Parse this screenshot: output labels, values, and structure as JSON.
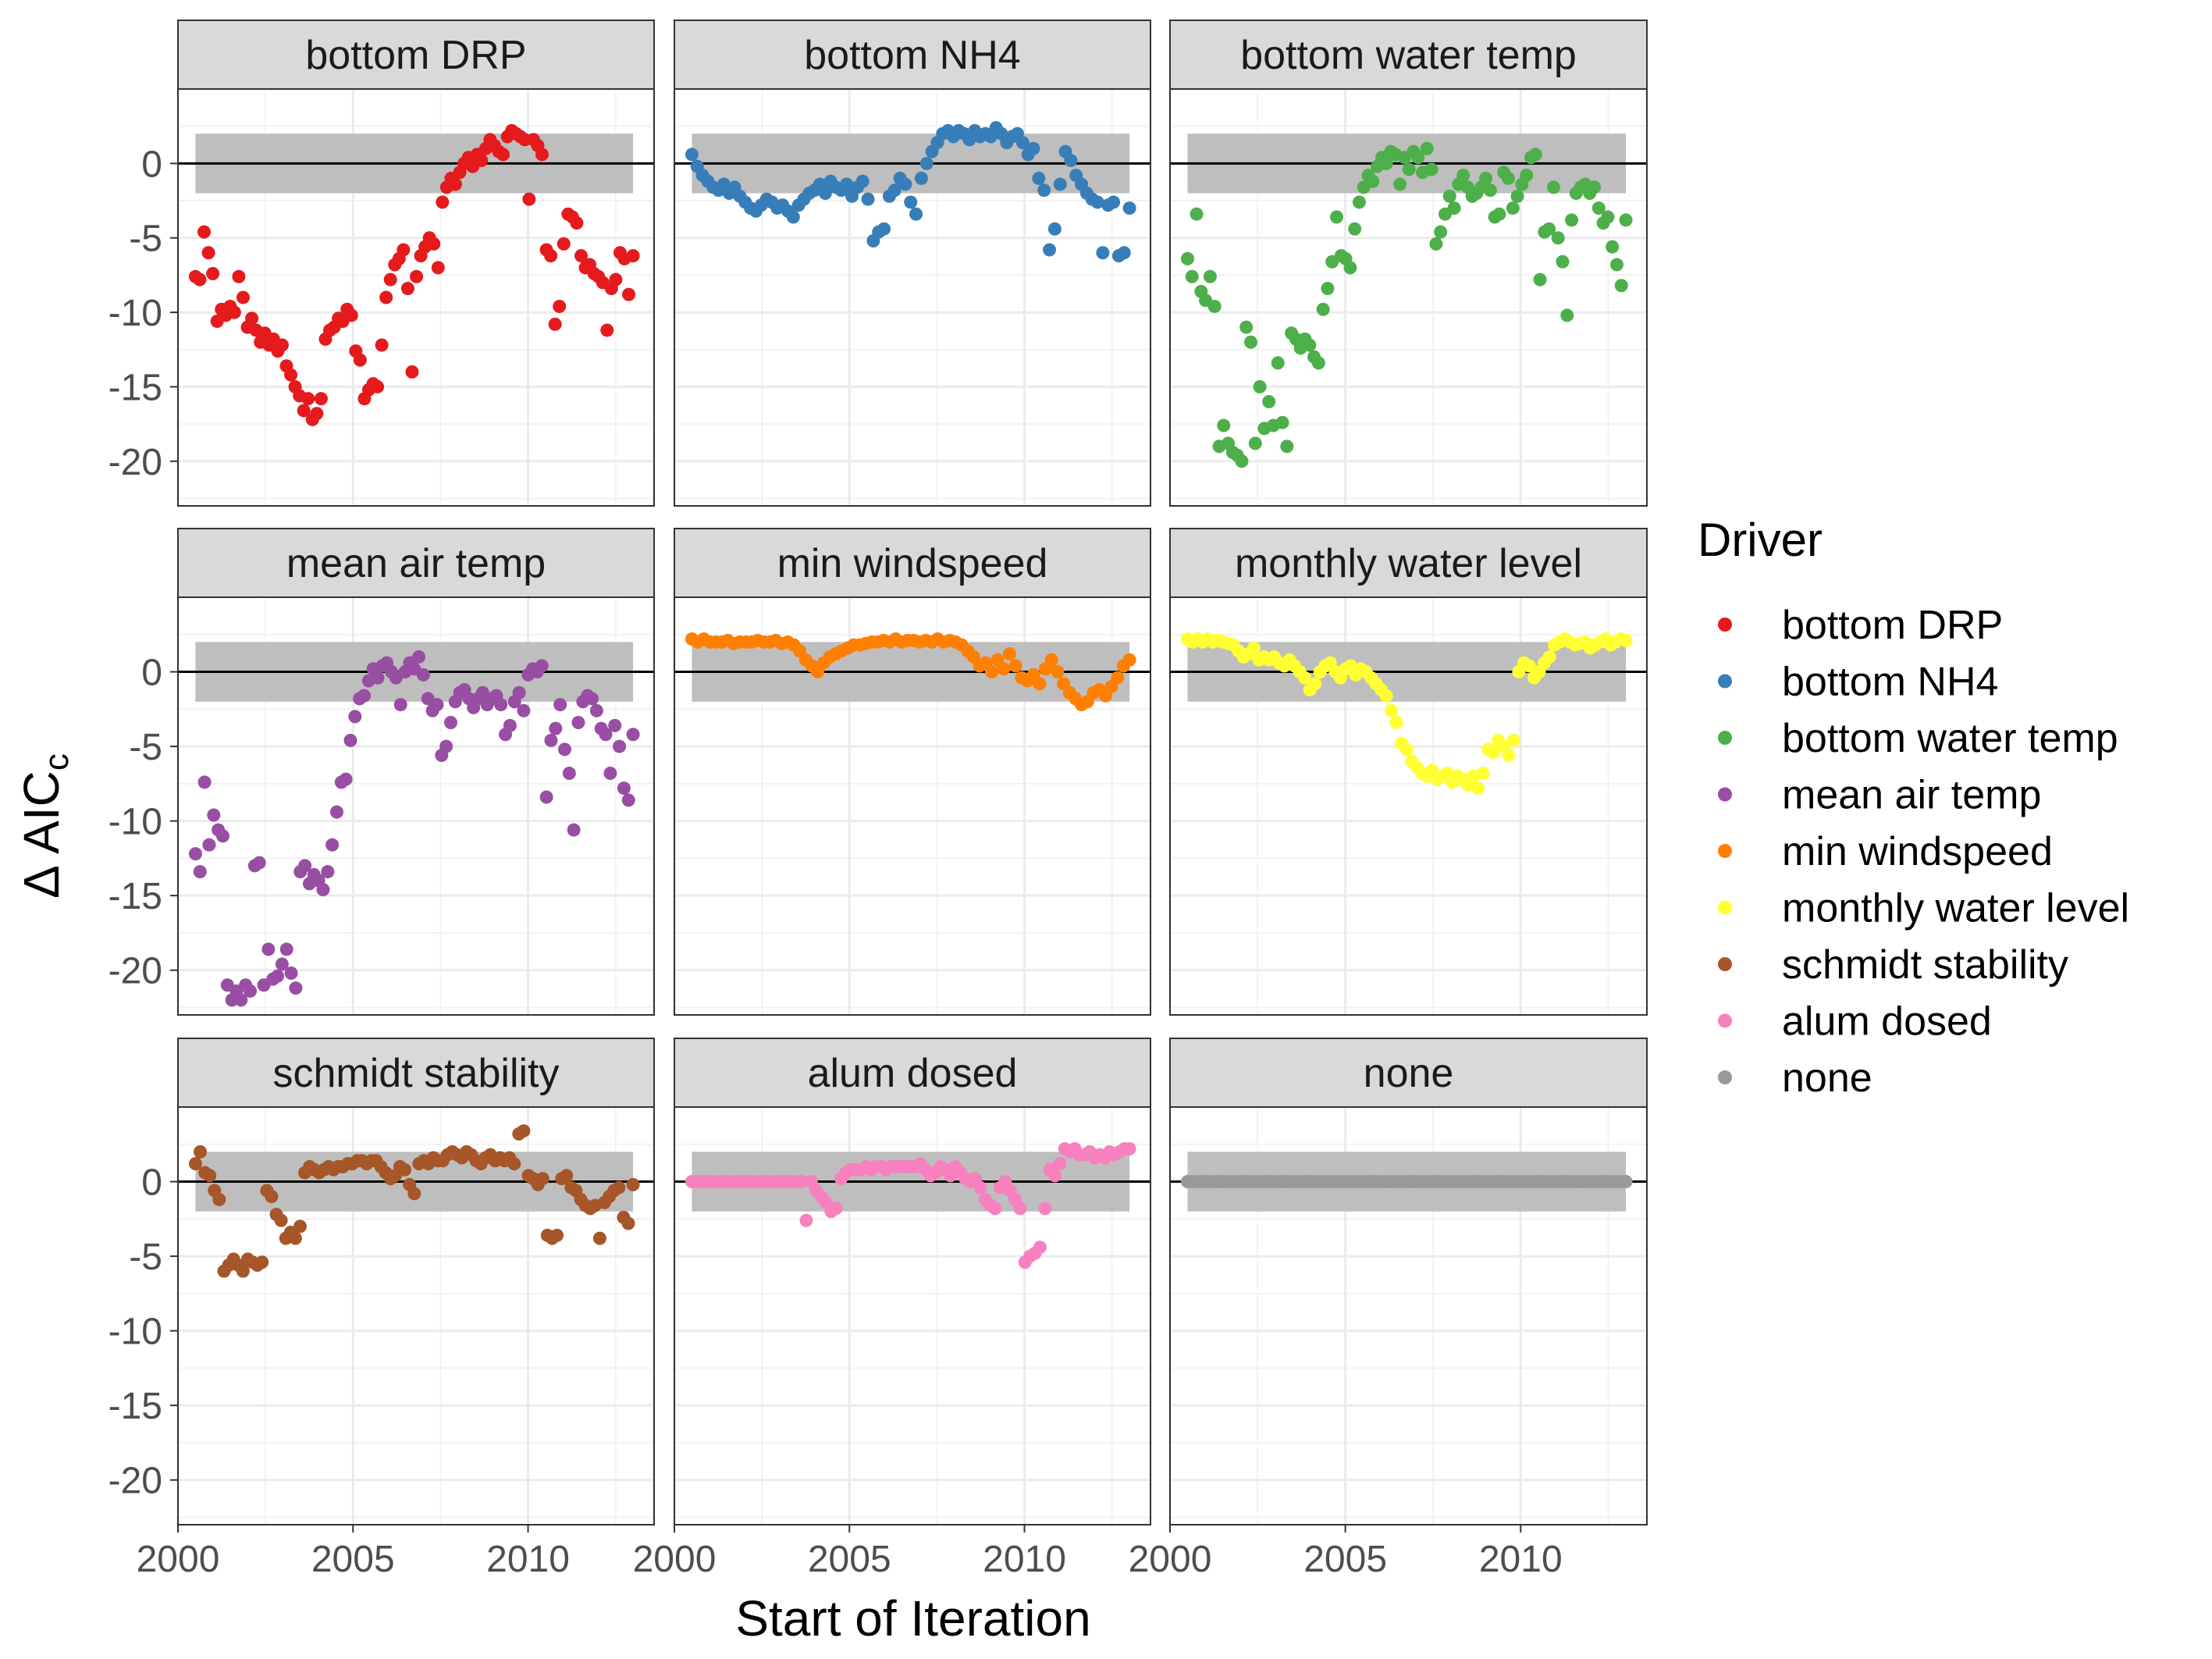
{
  "figure": {
    "xlabel": "Start of Iteration",
    "ylabel_main": "Δ AIC",
    "ylabel_sub": "c"
  },
  "legend": {
    "title": "Driver",
    "placement": "right",
    "items": [
      {
        "label": "bottom DRP",
        "color": "#E41A1C"
      },
      {
        "label": "bottom NH4",
        "color": "#377EB8"
      },
      {
        "label": "bottom water temp",
        "color": "#4DAF4A"
      },
      {
        "label": "mean air temp",
        "color": "#984EA3"
      },
      {
        "label": "min windspeed",
        "color": "#FF7F00"
      },
      {
        "label": "monthly water level",
        "color": "#FFFF33"
      },
      {
        "label": "schmidt stability",
        "color": "#A65628"
      },
      {
        "label": "alum dosed",
        "color": "#F781BF"
      },
      {
        "label": "none",
        "color": "#999999"
      }
    ]
  },
  "chart_data": {
    "type": "scatter",
    "layout": "facet-grid-3x3",
    "xlabel": "Start of Iteration",
    "ylabel": "Δ AICc",
    "xlim": [
      2000,
      2013.6
    ],
    "ylim": [
      -23,
      5
    ],
    "x_ticks": [
      2000,
      2005,
      2010
    ],
    "y_ticks": [
      0,
      -5,
      -10,
      -15,
      -20
    ],
    "grid": true,
    "reference_line": 0,
    "reference_band": [
      -2,
      2
    ],
    "panels": [
      {
        "name": "bottom DRP",
        "color": "#E41A1C",
        "x_start": 2000.5,
        "x_end": 2013.0,
        "y": [
          -7.6,
          -7.8,
          -4.6,
          -6.0,
          -7.4,
          -10.6,
          -9.8,
          -10.2,
          -9.6,
          -10.0,
          -7.6,
          -9.0,
          -11.0,
          -10.4,
          -11.2,
          -12.0,
          -11.4,
          -12.2,
          -11.8,
          -12.6,
          -12.2,
          -13.6,
          -14.2,
          -15.0,
          -15.6,
          -16.6,
          -15.8,
          -17.2,
          -16.8,
          -15.8,
          -11.8,
          -11.2,
          -11.0,
          -10.4,
          -10.6,
          -9.8,
          -10.2,
          -12.6,
          -13.2,
          -15.8,
          -15.2,
          -14.8,
          -15.0,
          -12.2,
          -9.0,
          -7.8,
          -6.8,
          -6.4,
          -5.8,
          -8.4,
          -14.0,
          -7.6,
          -6.2,
          -5.6,
          -5.0,
          -5.4,
          -7.0,
          -2.6,
          -1.6,
          -1.0,
          -1.4,
          -0.6,
          0.0,
          0.4,
          -0.2,
          0.6,
          0.2,
          1.0,
          1.6,
          1.2,
          0.8,
          0.6,
          1.8,
          2.2,
          2.0,
          1.8,
          1.6,
          -2.4,
          1.6,
          1.2,
          0.6,
          -5.8,
          -6.2,
          -10.8,
          -9.6,
          -5.4,
          -3.4,
          -3.6,
          -4.0,
          -6.2,
          -7.0,
          -6.8,
          -7.4,
          -7.6,
          -8.0,
          -11.2,
          -8.4,
          -7.8,
          -6.0,
          -6.4,
          -8.8,
          -6.2
        ]
      },
      {
        "name": "bottom NH4",
        "color": "#377EB8",
        "x_start": 2000.5,
        "x_end": 2013.0,
        "y": [
          0.6,
          -0.2,
          -0.8,
          -1.2,
          -1.6,
          -1.8,
          -1.4,
          -2.0,
          -1.6,
          -2.2,
          -2.6,
          -3.0,
          -3.2,
          -2.8,
          -2.4,
          -2.6,
          -3.0,
          -2.8,
          -3.2,
          -3.6,
          -2.8,
          -2.4,
          -2.0,
          -1.8,
          -1.4,
          -2.0,
          -1.2,
          -1.6,
          -1.8,
          -1.4,
          -2.2,
          -1.6,
          -1.2,
          -2.4,
          -5.2,
          -4.6,
          -4.4,
          -2.2,
          -1.8,
          -1.0,
          -1.4,
          -2.6,
          -3.4,
          -1.0,
          0.0,
          0.8,
          1.4,
          2.0,
          2.2,
          1.8,
          2.2,
          2.0,
          1.6,
          2.2,
          1.8,
          2.0,
          1.8,
          2.4,
          2.0,
          1.4,
          1.8,
          2.0,
          1.4,
          0.6,
          1.0,
          -1.0,
          -1.8,
          -5.8,
          -4.4,
          -1.4,
          0.8,
          0.2,
          -0.8,
          -1.4,
          -2.0,
          -2.4,
          -2.6,
          -6.0,
          -2.8,
          -2.6,
          -6.2,
          -6.0,
          -3.0
        ]
      },
      {
        "name": "bottom water temp",
        "color": "#4DAF4A",
        "x_start": 2000.5,
        "x_end": 2013.0,
        "y": [
          -6.4,
          -7.6,
          -3.4,
          -8.6,
          -9.2,
          -7.6,
          -9.6,
          -19.0,
          -17.6,
          -18.8,
          -19.4,
          -19.6,
          -20.0,
          -11.0,
          -12.0,
          -18.8,
          -15.0,
          -17.8,
          -16.0,
          -17.6,
          -13.4,
          -17.4,
          -19.0,
          -11.4,
          -11.8,
          -12.4,
          -11.8,
          -12.2,
          -13.0,
          -13.4,
          -9.8,
          -8.4,
          -6.6,
          -3.6,
          -6.2,
          -6.4,
          -7.0,
          -4.4,
          -2.6,
          -1.6,
          -0.8,
          -1.2,
          -0.2,
          0.4,
          0.0,
          0.8,
          0.6,
          -1.4,
          0.4,
          -0.4,
          0.8,
          0.4,
          -0.6,
          1.0,
          -0.4,
          -5.4,
          -4.6,
          -3.4,
          -2.2,
          -3.0,
          -1.4,
          -0.8,
          -1.6,
          -2.2,
          -2.0,
          -1.6,
          -1.0,
          -1.8,
          -3.6,
          -3.4,
          -0.6,
          -1.0,
          -3.0,
          -2.2,
          -1.4,
          -0.8,
          0.4,
          0.6,
          -7.8,
          -4.6,
          -4.4,
          -1.6,
          -5.0,
          -6.6,
          -10.2,
          -3.8,
          -2.0,
          -1.6,
          -1.4,
          -2.0,
          -1.6,
          -3.0,
          -4.0,
          -3.6,
          -5.6,
          -6.8,
          -8.2,
          -3.8
        ]
      },
      {
        "name": "mean air temp",
        "color": "#984EA3",
        "x_start": 2000.5,
        "x_end": 2013.0,
        "y": [
          -12.2,
          -13.4,
          -7.4,
          -11.6,
          -9.6,
          -10.6,
          -11.0,
          -21.0,
          -22.0,
          -21.4,
          -22.0,
          -21.0,
          -21.4,
          -13.0,
          -12.8,
          -21.0,
          -18.6,
          -20.6,
          -20.4,
          -19.6,
          -18.6,
          -20.2,
          -21.2,
          -13.4,
          -13.0,
          -14.2,
          -13.6,
          -14.0,
          -14.6,
          -13.4,
          -11.6,
          -9.4,
          -7.4,
          -7.2,
          -4.6,
          -3.0,
          -1.8,
          -1.6,
          -0.6,
          0.2,
          -0.4,
          0.4,
          0.6,
          0.0,
          -0.4,
          -2.2,
          0.0,
          0.6,
          0.2,
          1.0,
          -0.2,
          -1.8,
          -2.6,
          -2.2,
          -5.6,
          -5.0,
          -3.4,
          -2.0,
          -1.4,
          -1.2,
          -1.8,
          -2.4,
          -1.8,
          -1.4,
          -2.2,
          -1.8,
          -1.6,
          -2.2,
          -4.2,
          -3.6,
          -2.0,
          -1.4,
          -2.6,
          -0.2,
          0.2,
          0.0,
          0.4,
          -8.4,
          -4.6,
          -3.8,
          -2.2,
          -5.2,
          -6.8,
          -10.6,
          -3.4,
          -2.0,
          -1.6,
          -1.8,
          -2.6,
          -3.8,
          -4.2,
          -6.8,
          -3.6,
          -5.0,
          -7.8,
          -8.6,
          -4.2
        ]
      },
      {
        "name": "min windspeed",
        "color": "#FF7F00",
        "x_start": 2000.5,
        "x_end": 2013.0,
        "y": [
          2.2,
          2.0,
          2.2,
          2.0,
          2.0,
          2.0,
          2.1,
          1.9,
          2.0,
          2.0,
          2.0,
          2.1,
          2.0,
          2.0,
          2.1,
          1.9,
          2.0,
          1.8,
          1.4,
          0.8,
          0.4,
          0.0,
          0.6,
          1.0,
          1.2,
          1.4,
          1.6,
          1.8,
          1.8,
          1.9,
          2.0,
          2.0,
          2.1,
          2.0,
          2.2,
          2.0,
          2.1,
          2.1,
          2.0,
          2.1,
          2.0,
          2.2,
          2.0,
          2.1,
          2.0,
          1.8,
          1.4,
          1.0,
          0.4,
          0.6,
          0.0,
          0.8,
          0.2,
          1.2,
          0.4,
          -0.4,
          -0.6,
          -0.2,
          -0.8,
          0.2,
          0.8,
          0.0,
          -0.8,
          -1.4,
          -1.8,
          -2.2,
          -2.0,
          -1.4,
          -1.2,
          -1.6,
          -1.0,
          -0.4,
          0.4,
          0.8
        ]
      },
      {
        "name": "monthly water level",
        "color": "#FFFF33",
        "x_start": 2000.5,
        "x_end": 2013.0,
        "y": [
          2.2,
          2.0,
          2.2,
          2.0,
          2.2,
          2.0,
          2.1,
          2.0,
          1.9,
          1.8,
          1.4,
          1.0,
          1.2,
          1.6,
          0.8,
          1.0,
          0.8,
          1.0,
          0.6,
          0.4,
          0.8,
          0.4,
          0.0,
          -0.4,
          -1.2,
          -0.8,
          0.0,
          0.4,
          0.6,
          0.0,
          -0.4,
          0.2,
          0.4,
          -0.2,
          0.2,
          0.0,
          -0.4,
          -0.8,
          -1.2,
          -1.6,
          -2.6,
          -3.4,
          -4.8,
          -5.2,
          -6.0,
          -6.4,
          -6.8,
          -7.0,
          -6.6,
          -7.2,
          -7.0,
          -6.8,
          -7.4,
          -7.0,
          -7.2,
          -7.6,
          -7.0,
          -7.8,
          -6.8,
          -5.2,
          -5.4,
          -4.6,
          -5.0,
          -5.6,
          -4.6,
          0.0,
          0.6,
          0.4,
          -0.4,
          0.0,
          0.6,
          1.0,
          1.8,
          2.0,
          2.2,
          2.0,
          1.8,
          1.9,
          2.0,
          1.6,
          1.8,
          2.0,
          2.2,
          1.8,
          2.0,
          2.2,
          2.1
        ]
      },
      {
        "name": "schmidt stability",
        "color": "#A65628",
        "x_start": 2000.5,
        "x_end": 2013.0,
        "y": [
          1.2,
          2.0,
          0.6,
          0.4,
          -0.6,
          -1.2,
          -6.0,
          -5.6,
          -5.2,
          -5.6,
          -6.0,
          -5.2,
          -5.4,
          -5.6,
          -5.4,
          -0.6,
          -1.0,
          -2.2,
          -2.6,
          -3.8,
          -3.4,
          -3.8,
          -3.0,
          0.6,
          1.0,
          0.8,
          0.6,
          0.8,
          1.0,
          0.8,
          1.0,
          1.0,
          1.2,
          1.2,
          1.4,
          1.4,
          1.2,
          1.4,
          1.4,
          1.0,
          0.6,
          0.2,
          0.4,
          1.0,
          0.8,
          -0.2,
          -0.8,
          1.2,
          1.4,
          1.2,
          1.6,
          1.4,
          1.4,
          1.8,
          2.0,
          1.8,
          1.6,
          2.0,
          1.8,
          1.4,
          1.2,
          1.6,
          1.8,
          1.4,
          1.6,
          1.4,
          1.6,
          1.2,
          3.2,
          3.4,
          0.4,
          0.2,
          -0.2,
          0.2,
          -3.6,
          -3.8,
          -3.6,
          0.2,
          0.4,
          -0.4,
          -0.6,
          -1.2,
          -1.6,
          -1.8,
          -1.6,
          -3.8,
          -1.4,
          -1.0,
          -0.6,
          -0.4,
          -2.4,
          -2.8,
          -0.2
        ]
      },
      {
        "name": "alum dosed",
        "color": "#F781BF",
        "x_start": 2000.5,
        "x_end": 2013.0,
        "y": [
          0.0,
          0.0,
          0.0,
          0.0,
          0.0,
          0.0,
          0.0,
          0.0,
          0.0,
          0.0,
          0.0,
          0.0,
          0.0,
          0.0,
          0.0,
          0.0,
          0.0,
          0.0,
          0.0,
          0.0,
          0.0,
          0.0,
          0.0,
          -2.6,
          0.0,
          -0.6,
          -1.0,
          -1.4,
          -2.0,
          -1.8,
          0.2,
          0.6,
          0.8,
          0.8,
          0.8,
          1.0,
          0.8,
          1.0,
          1.0,
          0.8,
          1.0,
          1.0,
          1.0,
          1.0,
          1.0,
          1.0,
          1.2,
          0.8,
          0.4,
          0.6,
          1.0,
          0.8,
          0.4,
          1.0,
          0.6,
          0.2,
          0.0,
          0.2,
          -0.4,
          -1.2,
          -1.6,
          -1.8,
          -0.4,
          0.0,
          -0.6,
          -1.2,
          -1.8,
          -5.4,
          -5.0,
          -4.8,
          -4.4,
          -1.8,
          0.8,
          0.4,
          1.2,
          2.2,
          2.0,
          2.2,
          1.8,
          1.8,
          2.0,
          1.6,
          1.8,
          1.6,
          2.0,
          1.8,
          2.0,
          2.2,
          2.2
        ]
      },
      {
        "name": "none",
        "color": "#999999",
        "x_start": 2000.5,
        "x_end": 2013.0,
        "y": [
          0,
          0,
          0,
          0,
          0,
          0,
          0,
          0,
          0,
          0,
          0,
          0,
          0,
          0,
          0,
          0,
          0,
          0,
          0,
          0,
          0,
          0,
          0,
          0,
          0,
          0,
          0,
          0,
          0,
          0,
          0,
          0,
          0,
          0,
          0,
          0,
          0,
          0,
          0,
          0,
          0,
          0,
          0,
          0,
          0,
          0,
          0,
          0,
          0,
          0,
          0,
          0,
          0,
          0,
          0,
          0,
          0,
          0,
          0,
          0,
          0,
          0,
          0,
          0,
          0,
          0,
          0,
          0,
          0,
          0,
          0,
          0,
          0,
          0,
          0,
          0,
          0,
          0,
          0,
          0,
          0,
          0,
          0,
          0,
          0,
          0,
          0,
          0,
          0,
          0
        ]
      }
    ]
  }
}
